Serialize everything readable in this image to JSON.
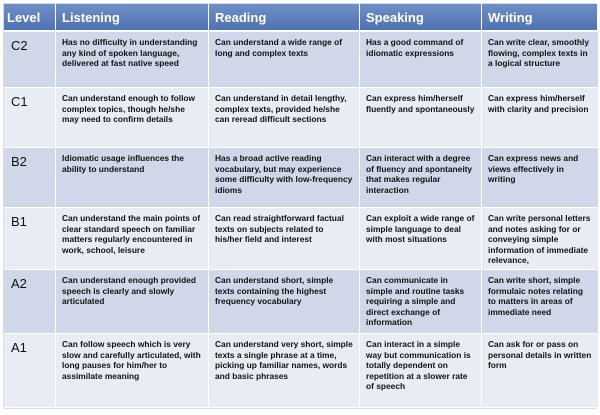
{
  "headers": [
    "Level",
    "Listening",
    "Reading",
    "Speaking",
    "Writing"
  ],
  "rows": [
    {
      "level": "C2",
      "listening": "Has no difficulty in understanding any kind of spoken language, delivered at fast native speed",
      "reading": "Can understand a wide range of long and complex texts",
      "speaking": "Has a good command of idiomatic expressions",
      "writing": "Can write clear, smoothly flowing, complex texts in a logical structure"
    },
    {
      "level": "C1",
      "listening": "Can understand enough to follow complex topics, though he/she may need to confirm details",
      "reading": "Can understand in detail lengthy, complex texts, provided he/she can reread difficult sections",
      "speaking": "Can express him/herself fluently and spontaneously",
      "writing": "Can express him/herself with clarity and precision"
    },
    {
      "level": "B2",
      "listening": "Idiomatic usage influences the ability to understand",
      "reading": "Has a broad active reading vocabulary, but may experience some difficulty with low-frequency idioms",
      "speaking": "Can interact with a degree of fluency and spontaneity that makes regular interaction",
      "writing": "Can express news and views effectively in writing"
    },
    {
      "level": "B1",
      "listening": "Can understand the main points of clear standard speech on familiar matters regularly encountered in work, school, leisure",
      "reading": "Can read straightforward factual texts on subjects related to his/her field and interest",
      "speaking": "Can exploit a wide range of simple language to deal with most situations",
      "writing": "Can write personal letters and notes asking for or conveying simple information of immediate relevance,"
    },
    {
      "level": "A2",
      "listening": "Can understand enough provided speech is clearly and slowly articulated",
      "reading": "Can understand short, simple texts containing the highest frequency vocabulary",
      "speaking": "Can communicate in simple and routine tasks requiring a simple and direct exchange of information",
      "writing": "Can write short, simple formulaic notes relating to matters in areas of immediate need"
    },
    {
      "level": "A1",
      "listening": "Can follow speech which is very slow and carefully articulated, with long pauses for him/her to assimilate meaning",
      "reading": "Can understand very short, simple texts a single phrase at a time, picking up familiar names, words and basic phrases",
      "speaking": "Can interact in a simple way but communication is totally dependent on repetition at a slower rate of speech",
      "writing": "Can ask for or pass on personal details in written form"
    }
  ]
}
